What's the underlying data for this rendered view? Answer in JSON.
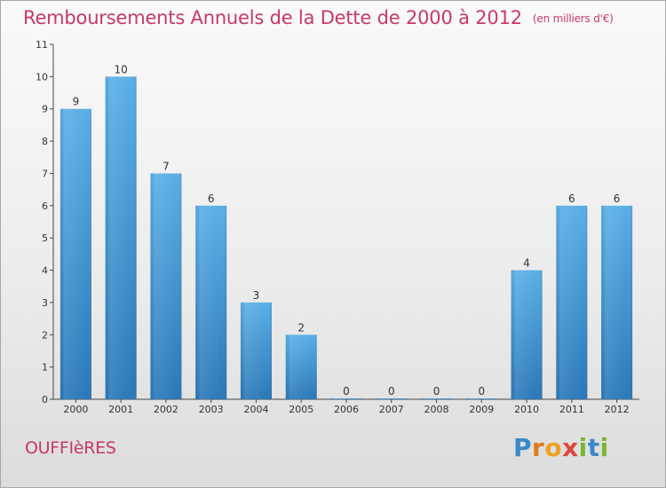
{
  "chart_data": {
    "type": "bar",
    "title": "Remboursements Annuels de la Dette de 2000 à 2012",
    "unit": "(en milliers d'€)",
    "categories": [
      "2000",
      "2001",
      "2002",
      "2003",
      "2004",
      "2005",
      "2006",
      "2007",
      "2008",
      "2009",
      "2010",
      "2011",
      "2012"
    ],
    "values": [
      9,
      10,
      7,
      6,
      3,
      2,
      0,
      0,
      0,
      0,
      4,
      6,
      6
    ],
    "ylim": [
      0,
      11
    ],
    "yticks": [
      0,
      1,
      2,
      3,
      4,
      5,
      6,
      7,
      8,
      9,
      10,
      11
    ],
    "xlabel": "",
    "ylabel": "",
    "grid": false,
    "bar_color": "#4a9fdc"
  },
  "footer": {
    "commune": "OUFFIèRES",
    "brand_letters": [
      {
        "ch": "P",
        "color": "#3a88c8"
      },
      {
        "ch": "r",
        "color": "#e07a1e"
      },
      {
        "ch": "o",
        "color": "#f0a020"
      },
      {
        "ch": "x",
        "color": "#e0463a"
      },
      {
        "ch": "i",
        "color": "#79b82e"
      },
      {
        "ch": "t",
        "color": "#3a88c8"
      },
      {
        "ch": "i",
        "color": "#79b82e"
      }
    ]
  }
}
